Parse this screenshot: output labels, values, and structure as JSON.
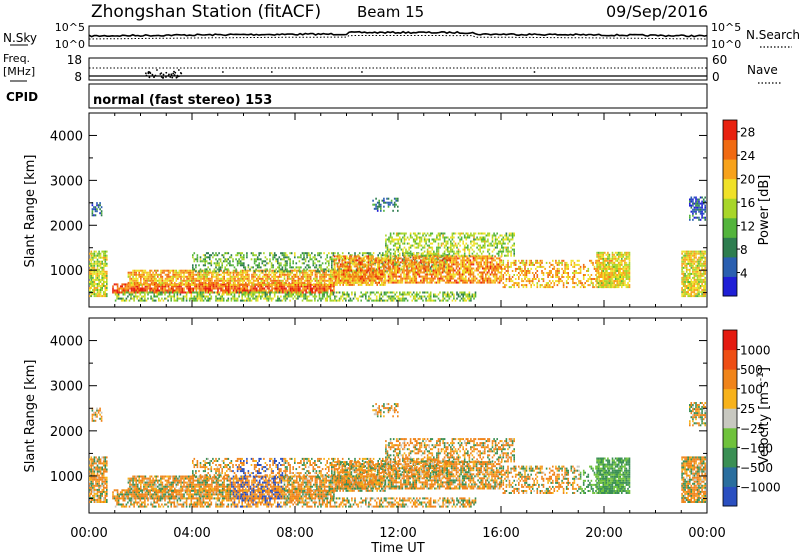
{
  "header": {
    "station": "Zhongshan Station (fitACF)",
    "beam": "Beam 15",
    "date": "09/Sep/2016"
  },
  "sky_panel": {
    "left_label": "N.Sky",
    "left_ticks": [
      "10^5",
      "10^0"
    ],
    "right_ticks": [
      "10^5",
      "10^0"
    ],
    "right_label": "N.Search"
  },
  "freq_panel": {
    "left_label_1": "Freq.",
    "left_label_2": "[MHz]",
    "left_ticks": [
      "18",
      "8"
    ],
    "right_ticks": [
      "60",
      "0"
    ],
    "right_label": "Nave"
  },
  "cpid_panel": {
    "label": "CPID",
    "mode_text": "normal (fast stereo) 153"
  },
  "chart_data": [
    {
      "type": "heatmap",
      "parameter": "Power",
      "ylabel": "Slant Range [km]",
      "ylim": [
        180,
        4500
      ],
      "y_ticks": [
        "1000",
        "2000",
        "3000",
        "4000"
      ],
      "y_tick_values": [
        1000,
        2000,
        3000,
        4000
      ],
      "xlim_hours": [
        0,
        24
      ],
      "colorbar": {
        "label": "Power [dB]",
        "ticks": [
          "4",
          "8",
          "12",
          "16",
          "20",
          "24",
          "28"
        ],
        "tick_values": [
          4,
          8,
          12,
          16,
          20,
          24,
          28
        ],
        "range": [
          0,
          30
        ],
        "colors": [
          "#1f1fd6",
          "#2a5fb0",
          "#2e7d4f",
          "#53b43c",
          "#a8d629",
          "#f0e128",
          "#f7a21b",
          "#f06a12",
          "#e8210f"
        ]
      }
    },
    {
      "type": "heatmap",
      "parameter": "Velocity",
      "ylabel": "Slant Range [km]",
      "ylim": [
        180,
        4500
      ],
      "y_ticks": [
        "1000",
        "2000",
        "3000",
        "4000"
      ],
      "y_tick_values": [
        1000,
        2000,
        3000,
        4000
      ],
      "xlim_hours": [
        0,
        24
      ],
      "colorbar": {
        "label": "Velocity [m s",
        "label_sup": "-1",
        "label_end": "]",
        "ticks": [
          "1000",
          "500",
          "100",
          "25",
          "−25",
          "−100",
          "−500",
          "−1000"
        ],
        "colors": [
          "#2a4fc0",
          "#2a6e9e",
          "#3a8f54",
          "#6fc23c",
          "#c8c8c0",
          "#f7b21b",
          "#f0841a",
          "#ee4e14",
          "#e41a10"
        ]
      }
    }
  ],
  "time_axis": {
    "ticks": [
      "00:00",
      "04:00",
      "08:00",
      "12:00",
      "16:00",
      "20:00",
      "00:00"
    ],
    "label": "Time UT"
  }
}
